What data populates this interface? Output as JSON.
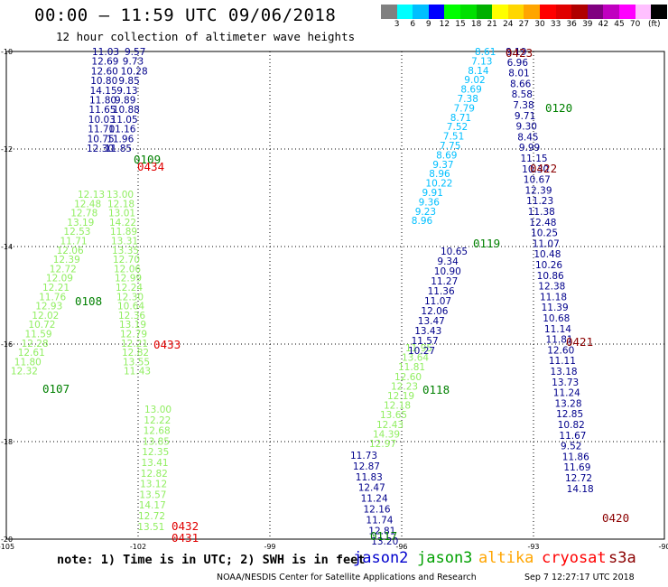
{
  "header": {
    "title": "00:00 – 11:59 UTC 09/06/2018",
    "subtitle": "12 hour collection of altimeter wave heights"
  },
  "colorbar": {
    "colors": [
      "#808080",
      "#00ffff",
      "#00bfff",
      "#0000ff",
      "#00ff00",
      "#00e000",
      "#00b000",
      "#ffff00",
      "#ffd700",
      "#ffa500",
      "#ff0000",
      "#e00000",
      "#b00000",
      "#800080",
      "#c000c0",
      "#ff00ff",
      "#ffc0ff",
      "#000000"
    ],
    "labels": [
      "3",
      "6",
      "9",
      "12",
      "15",
      "18",
      "21",
      "24",
      "27",
      "30",
      "33",
      "36",
      "39",
      "42",
      "45",
      "70"
    ],
    "unit": "(ft)"
  },
  "axes": {
    "y_ticks": [
      "-10",
      "-12",
      "-14",
      "-16",
      "-18",
      "-20"
    ],
    "x_ticks": [
      "-105",
      "-102",
      "-99",
      "-96",
      "-93",
      "-90"
    ]
  },
  "passes": [
    {
      "id": "0109",
      "color": "#008000"
    },
    {
      "id": "0434",
      "color": "#e00000"
    },
    {
      "id": "0108",
      "color": "#008000"
    },
    {
      "id": "0433",
      "color": "#e00000"
    },
    {
      "id": "0107",
      "color": "#008000"
    },
    {
      "id": "0432",
      "color": "#e00000"
    },
    {
      "id": "0431",
      "color": "#e00000"
    },
    {
      "id": "0117",
      "color": "#008000"
    },
    {
      "id": "0118",
      "color": "#008000"
    },
    {
      "id": "0119",
      "color": "#008000"
    },
    {
      "id": "0120",
      "color": "#008000"
    },
    {
      "id": "0423",
      "color": "#8b0000"
    },
    {
      "id": "0422",
      "color": "#8b0000"
    },
    {
      "id": "0421",
      "color": "#8b0000"
    },
    {
      "id": "0420",
      "color": "#8b0000"
    }
  ],
  "tracks": [
    {
      "name": "A",
      "color": "#00008b",
      "values": [
        "11.03",
        "9.57",
        "12.69",
        "9.73",
        "12.60",
        "10.28",
        "10.80",
        "9.85",
        "14.15",
        "9.13",
        "11.80",
        "9.89",
        "11.65",
        "10.88",
        "10.03",
        "11.05",
        "11.70",
        "11.16",
        "10.75",
        "11.96",
        "12.30",
        "11.85"
      ]
    },
    {
      "name": "B",
      "color": "#90ee60",
      "values": [
        "12.13",
        "13.00",
        "12.48",
        "12.18",
        "12.78",
        "13.01",
        "13.19",
        "14.22",
        "12.53",
        "11.89",
        "11.71",
        "13.31",
        "12.06",
        "13.35",
        "12.39",
        "12.70",
        "12.72",
        "12.06",
        "12.09",
        "12.99",
        "12.21",
        "12.24",
        "11.76",
        "12.30",
        "12.93",
        "10.64",
        "12.02",
        "12.36",
        "10.72",
        "13.19",
        "11.59",
        "12.79",
        "12.28",
        "12.21",
        "12.61",
        "12.82",
        "11.80",
        "13.55",
        "12.32",
        "11.43"
      ]
    },
    {
      "name": "C",
      "color": "#90ee60",
      "values": [
        "13.00",
        "12.22",
        "12.68",
        "13.85",
        "12.35",
        "13.41",
        "12.82",
        "13.12",
        "13.57",
        "14.17",
        "12.72",
        "13.51"
      ]
    },
    {
      "name": "D",
      "color": "#00008b",
      "values": [
        "11.73",
        "12.87",
        "11.83",
        "12.47",
        "11.24",
        "12.16",
        "11.74",
        "12.81",
        "13.20"
      ]
    },
    {
      "name": "E",
      "color": "#90ee60",
      "values": [
        "11.95",
        "13.64",
        "11.81",
        "12.60",
        "12.23",
        "12.19",
        "12.18",
        "13.65",
        "12.43",
        "14.39",
        "12.97"
      ]
    },
    {
      "name": "F",
      "color": "#00008b",
      "values": [
        "10.65",
        "9.34",
        "10.90",
        "11.27",
        "11.36",
        "11.07",
        "12.06",
        "13.47",
        "13.43",
        "11.57",
        "10.27"
      ]
    },
    {
      "name": "G",
      "color": "#00bfff",
      "values": [
        "8.61",
        "7.13",
        "8.14",
        "9.02",
        "8.69",
        "7.38",
        "7.79",
        "8.71",
        "7.52",
        "7.51",
        "7.75",
        "8.69",
        "9.37",
        "8.96",
        "10.22",
        "9.91",
        "9.36",
        "9.23",
        "8.96"
      ]
    },
    {
      "name": "H",
      "color": "#00008b",
      "values": [
        "8.19",
        "6.96",
        "8.01",
        "8.66",
        "8.58",
        "7.38",
        "9.71",
        "9.30",
        "8.45",
        "9.99",
        "11.15",
        "10.30",
        "10.67",
        "12.39",
        "11.23",
        "11.38",
        "12.48",
        "10.25",
        "11.07",
        "10.48",
        "10.26",
        "10.86",
        "12.38",
        "11.18",
        "11.39",
        "10.68",
        "11.14",
        "11.81",
        "12.60",
        "11.11",
        "13.18",
        "13.73",
        "11.24",
        "13.28",
        "12.85",
        "10.82",
        "11.67",
        "9.52",
        "11.86",
        "11.69",
        "12.72",
        "14.18"
      ]
    }
  ],
  "note": "note: 1) Time is in UTC; 2) SWH is in feet",
  "legend": [
    {
      "label": "jason2",
      "color": "#0000cd"
    },
    {
      "label": "jason3",
      "color": "#00a000"
    },
    {
      "label": "altika",
      "color": "#ffa500"
    },
    {
      "label": "cryosat",
      "color": "#ff0000"
    },
    {
      "label": "s3a",
      "color": "#8b0000"
    }
  ],
  "footer": {
    "org": "NOAA/NESDIS Center for Satellite Applications and Research",
    "timestamp": "Sep  7 12:27:17 UTC 2018"
  }
}
